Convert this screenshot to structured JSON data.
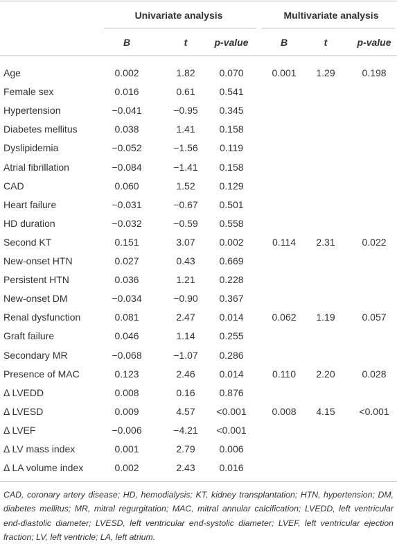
{
  "table": {
    "groups": [
      "Univariate analysis",
      "Multivariate analysis"
    ],
    "columns": [
      "B",
      "t",
      "p-value"
    ],
    "rows": [
      {
        "label": "Age",
        "univariate": [
          "0.002",
          "1.82",
          "0.070"
        ],
        "multivariate": [
          "0.001",
          "1.29",
          "0.198"
        ]
      },
      {
        "label": "Female sex",
        "univariate": [
          "0.016",
          "0.61",
          "0.541"
        ]
      },
      {
        "label": "Hypertension",
        "univariate": [
          "−0.041",
          "−0.95",
          "0.345"
        ]
      },
      {
        "label": "Diabetes mellitus",
        "univariate": [
          "0.038",
          "1.41",
          "0.158"
        ]
      },
      {
        "label": "Dyslipidemia",
        "univariate": [
          "−0.052",
          "−1.56",
          "0.119"
        ]
      },
      {
        "label": "Atrial fibrillation",
        "univariate": [
          "−0.084",
          "−1.41",
          "0.158"
        ]
      },
      {
        "label": "CAD",
        "univariate": [
          "0.060",
          "1.52",
          "0.129"
        ]
      },
      {
        "label": "Heart failure",
        "univariate": [
          "−0.031",
          "−0.67",
          "0.501"
        ]
      },
      {
        "label": "HD duration",
        "univariate": [
          "−0.032",
          "−0.59",
          "0.558"
        ]
      },
      {
        "label": "Second KT",
        "univariate": [
          "0.151",
          "3.07",
          "0.002"
        ],
        "multivariate": [
          "0.114",
          "2.31",
          "0.022"
        ]
      },
      {
        "label": "New-onset HTN",
        "univariate": [
          "0.027",
          "0.43",
          "0.669"
        ]
      },
      {
        "label": "Persistent HTN",
        "univariate": [
          "0.036",
          "1.21",
          "0.228"
        ]
      },
      {
        "label": "New-onset DM",
        "univariate": [
          "−0.034",
          "−0.90",
          "0.367"
        ]
      },
      {
        "label": "Renal dysfunction",
        "univariate": [
          "0.081",
          "2.47",
          "0.014"
        ],
        "multivariate": [
          "0.062",
          "1.19",
          "0.057"
        ]
      },
      {
        "label": "Graft failure",
        "univariate": [
          "0.046",
          "1.14",
          "0.255"
        ]
      },
      {
        "label": "Secondary MR",
        "univariate": [
          "−0.068",
          "−1.07",
          "0.286"
        ]
      },
      {
        "label": "Presence of MAC",
        "univariate": [
          "0.123",
          "2.46",
          "0.014"
        ],
        "multivariate": [
          "0.110",
          "2.20",
          "0.028"
        ]
      },
      {
        "label": "Δ LVEDD",
        "univariate": [
          "0.008",
          "0.16",
          "0.876"
        ]
      },
      {
        "label": "Δ LVESD",
        "univariate": [
          "0.009",
          "4.57",
          "<0.001"
        ],
        "multivariate": [
          "0.008",
          "4.15",
          "<0.001"
        ]
      },
      {
        "label": "Δ LVEF",
        "univariate": [
          "−0.006",
          "−4.21",
          "<0.001"
        ]
      },
      {
        "label": "Δ LV mass index",
        "univariate": [
          "0.001",
          "2.79",
          "0.006"
        ]
      },
      {
        "label": "Δ LA volume index",
        "univariate": [
          "0.002",
          "2.43",
          "0.016"
        ]
      }
    ],
    "footnote": "CAD, coronary artery disease; HD, hemodialysis; KT, kidney transplantation; HTN, hypertension; DM, diabetes mellitus; MR, mitral regurgitation; MAC, mitral annular calcification; LVEDD, left ventricular end-diastolic diameter; LVESD, left ventricular end-systolic diameter; LVEF, left ventricular ejection fraction; LV, left ventricle; LA, left atrium."
  }
}
